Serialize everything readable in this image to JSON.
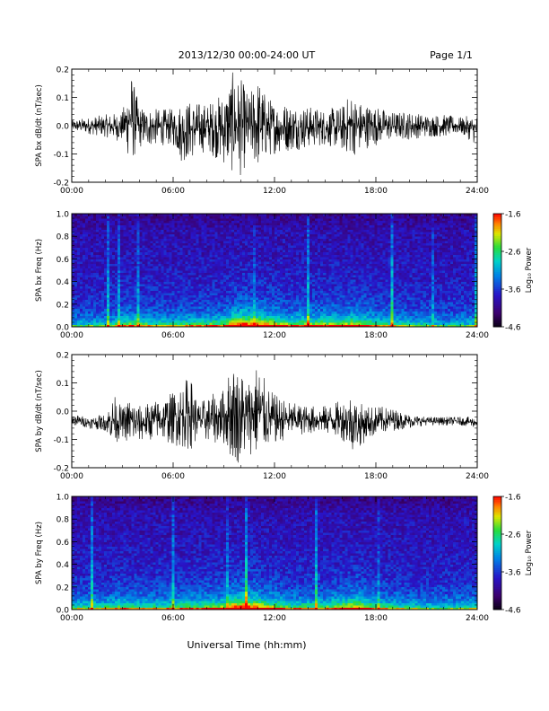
{
  "header": {
    "date_range": "2013/12/30  00:00-24:00 UT",
    "page": "Page 1/1"
  },
  "x_axis_label": "Universal Time (hh:mm)",
  "chart_data": [
    {
      "type": "line",
      "ylabel": "SPA bx dB/dt (nT/sec)",
      "x_ticks": [
        "00:00",
        "06:00",
        "12:00",
        "18:00",
        "24:00"
      ],
      "xlim_hours": [
        0,
        24
      ],
      "ylim": [
        -0.2,
        0.2
      ],
      "y_ticks": [
        -0.2,
        -0.1,
        0.0,
        0.1,
        0.2
      ],
      "envelope": {
        "x_hours": [
          0,
          1,
          2,
          3,
          3.5,
          4,
          5,
          6,
          6.5,
          7,
          8,
          9,
          9.5,
          10,
          10.5,
          11,
          11.5,
          12,
          13,
          14,
          15,
          16,
          16.5,
          17,
          17.5,
          18,
          19,
          20,
          21,
          22,
          23,
          24
        ],
        "max": [
          0.02,
          0.03,
          0.04,
          0.05,
          0.2,
          0.07,
          0.06,
          0.06,
          0.09,
          0.09,
          0.08,
          0.12,
          0.19,
          0.17,
          0.11,
          0.18,
          0.11,
          0.09,
          0.08,
          0.07,
          0.06,
          0.07,
          0.12,
          0.09,
          0.08,
          0.07,
          0.05,
          0.05,
          0.04,
          0.04,
          0.03,
          0.04
        ],
        "min": [
          -0.02,
          -0.03,
          -0.04,
          -0.06,
          -0.14,
          -0.08,
          -0.07,
          -0.07,
          -0.13,
          -0.12,
          -0.09,
          -0.14,
          -0.17,
          -0.18,
          -0.12,
          -0.16,
          -0.12,
          -0.1,
          -0.09,
          -0.08,
          -0.07,
          -0.09,
          -0.11,
          -0.1,
          -0.08,
          -0.07,
          -0.05,
          -0.05,
          -0.04,
          -0.04,
          -0.03,
          -0.07
        ]
      }
    },
    {
      "type": "heatmap",
      "ylabel": "SPA bx Freq (Hz)",
      "x_ticks": [
        "00:00",
        "06:00",
        "12:00",
        "18:00",
        "24:00"
      ],
      "xlim_hours": [
        0,
        24
      ],
      "ylim": [
        0,
        1.0
      ],
      "y_ticks": [
        0.0,
        0.2,
        0.4,
        0.6,
        0.8,
        1.0
      ],
      "colorbar": {
        "label": "Log₁₀ Power",
        "range": [
          -4.6,
          -1.6
        ],
        "ticks": [
          -1.6,
          -2.6,
          -3.6,
          -4.6
        ]
      },
      "activity": {
        "x_hours": [
          0,
          2,
          3.5,
          6,
          7,
          9,
          9.5,
          10,
          10.5,
          11,
          12,
          13,
          15,
          16,
          17,
          18,
          20,
          22,
          24
        ],
        "level": [
          0.35,
          0.4,
          0.6,
          0.45,
          0.55,
          0.6,
          0.85,
          1.0,
          0.95,
          0.9,
          0.75,
          0.6,
          0.65,
          0.7,
          0.75,
          0.55,
          0.45,
          0.35,
          0.4
        ]
      }
    },
    {
      "type": "line",
      "ylabel": "SPA by dB/dt (nT/sec)",
      "x_ticks": [
        "00:00",
        "06:00",
        "12:00",
        "18:00",
        "24:00"
      ],
      "xlim_hours": [
        0,
        24
      ],
      "ylim": [
        -0.2,
        0.2
      ],
      "y_ticks": [
        -0.2,
        -0.1,
        0.0,
        0.1,
        0.2
      ],
      "envelope": {
        "x_hours": [
          0,
          1,
          2,
          2.5,
          3,
          3.5,
          4,
          5,
          6,
          7,
          7.5,
          8,
          9,
          9.5,
          10,
          10.5,
          11,
          11.5,
          12,
          13,
          14,
          15,
          16,
          16.5,
          17,
          17.5,
          18,
          19,
          20,
          21,
          22,
          23,
          24
        ],
        "max": [
          -0.01,
          -0.02,
          -0.01,
          0.06,
          0.01,
          0.06,
          0.02,
          0.04,
          0.07,
          0.13,
          0.03,
          0.05,
          0.08,
          0.18,
          0.15,
          0.12,
          0.18,
          0.1,
          0.06,
          0.03,
          0.02,
          0.02,
          0.04,
          0.07,
          0.03,
          0.02,
          0.02,
          0.01,
          -0.01,
          -0.02,
          -0.02,
          -0.02,
          -0.02
        ],
        "min": [
          -0.05,
          -0.06,
          -0.07,
          -0.12,
          -0.09,
          -0.13,
          -0.11,
          -0.1,
          -0.12,
          -0.14,
          -0.1,
          -0.11,
          -0.12,
          -0.18,
          -0.19,
          -0.15,
          -0.17,
          -0.14,
          -0.12,
          -0.09,
          -0.08,
          -0.08,
          -0.1,
          -0.14,
          -0.13,
          -0.1,
          -0.09,
          -0.07,
          -0.06,
          -0.05,
          -0.05,
          -0.05,
          -0.06
        ]
      }
    },
    {
      "type": "heatmap",
      "ylabel": "SPA by Freq (Hz)",
      "x_ticks": [
        "00:00",
        "06:00",
        "12:00",
        "18:00",
        "24:00"
      ],
      "xlim_hours": [
        0,
        24
      ],
      "ylim": [
        0,
        1.0
      ],
      "y_ticks": [
        0.0,
        0.2,
        0.4,
        0.6,
        0.8,
        1.0
      ],
      "colorbar": {
        "label": "Log₁₀ Power",
        "range": [
          -4.6,
          -1.6
        ],
        "ticks": [
          -1.6,
          -2.6,
          -3.6,
          -4.6
        ]
      },
      "activity": {
        "x_hours": [
          0,
          2,
          3,
          4,
          6,
          7,
          9,
          9.5,
          10,
          10.5,
          11,
          12,
          13,
          15,
          16,
          17,
          18,
          20,
          22,
          24
        ],
        "level": [
          0.45,
          0.5,
          0.6,
          0.5,
          0.55,
          0.6,
          0.65,
          0.9,
          1.0,
          0.95,
          0.85,
          0.7,
          0.55,
          0.55,
          0.7,
          0.8,
          0.55,
          0.45,
          0.4,
          0.45
        ]
      }
    }
  ]
}
